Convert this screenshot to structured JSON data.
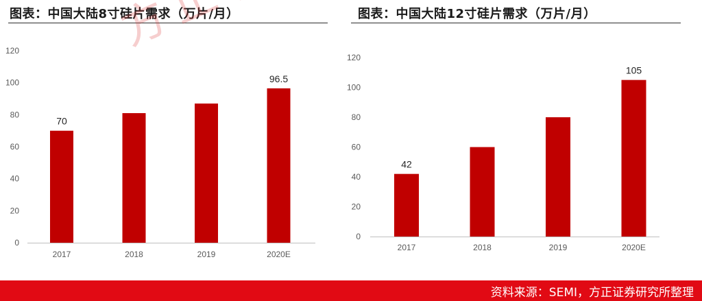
{
  "watermark": "方正科技",
  "footer": {
    "source": "资料来源：SEMI，方正证券研究所整理"
  },
  "colors": {
    "bar": "#c00000",
    "footer": "#e10a14"
  },
  "chart_data": [
    {
      "type": "bar",
      "title": "图表：中国大陆8寸硅片需求（万片/月）",
      "categories": [
        "2017",
        "2018",
        "2019",
        "2020E"
      ],
      "values": [
        70,
        81,
        87,
        96.5
      ],
      "data_labels": [
        "70",
        "",
        "",
        "96.5"
      ],
      "ylim": [
        0,
        120
      ],
      "yticks": [
        0,
        20,
        40,
        60,
        80,
        100,
        120
      ],
      "grid": false
    },
    {
      "type": "bar",
      "title": "图表：中国大陆12寸硅片需求（万片/月）",
      "categories": [
        "2017",
        "2018",
        "2019",
        "2020E"
      ],
      "values": [
        42,
        60,
        80,
        105
      ],
      "data_labels": [
        "42",
        "",
        "",
        "105"
      ],
      "ylim": [
        0,
        120
      ],
      "yticks": [
        0,
        20,
        40,
        60,
        80,
        100,
        120
      ],
      "grid": false
    }
  ]
}
